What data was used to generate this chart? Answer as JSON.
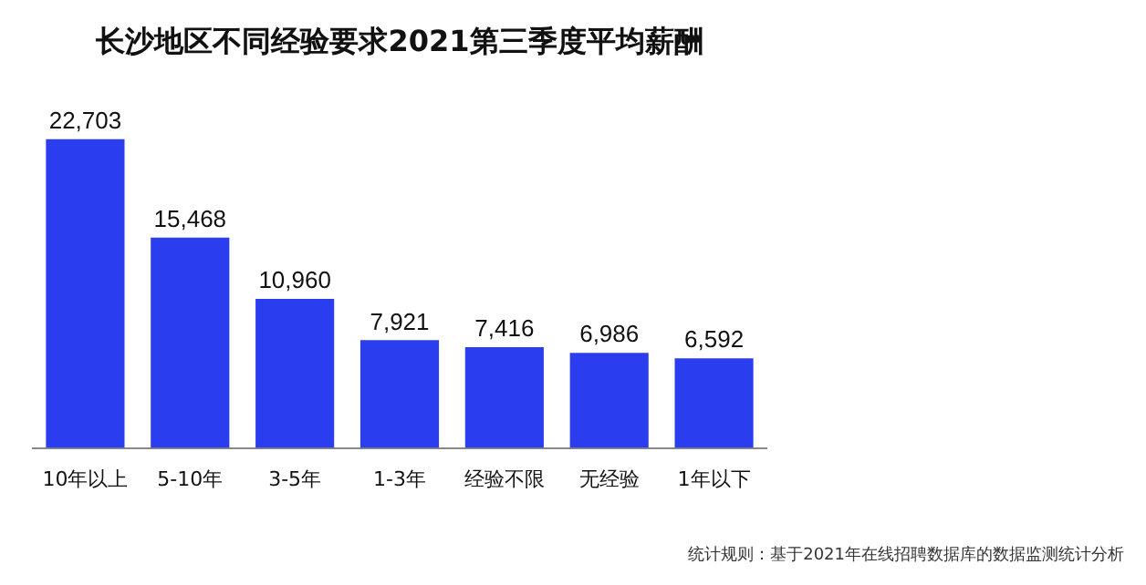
{
  "chart_data": {
    "type": "bar",
    "title": "长沙地区不同经验要求2021第三季度平均薪酬",
    "categories": [
      "10年以上",
      "5-10年",
      "3-5年",
      "1-3年",
      "经验不限",
      "无经验",
      "1年以下"
    ],
    "values": [
      22703,
      15468,
      10960,
      7921,
      7416,
      6986,
      6592
    ],
    "value_labels": [
      "22,703",
      "15,468",
      "10,960",
      "7,921",
      "7,416",
      "6,986",
      "6,592"
    ],
    "color": "#2a3ef0",
    "grid": false,
    "legend": false,
    "annotations": [
      "统计规则：基于2021年在线招聘数据库的数据监测统计分析"
    ]
  }
}
